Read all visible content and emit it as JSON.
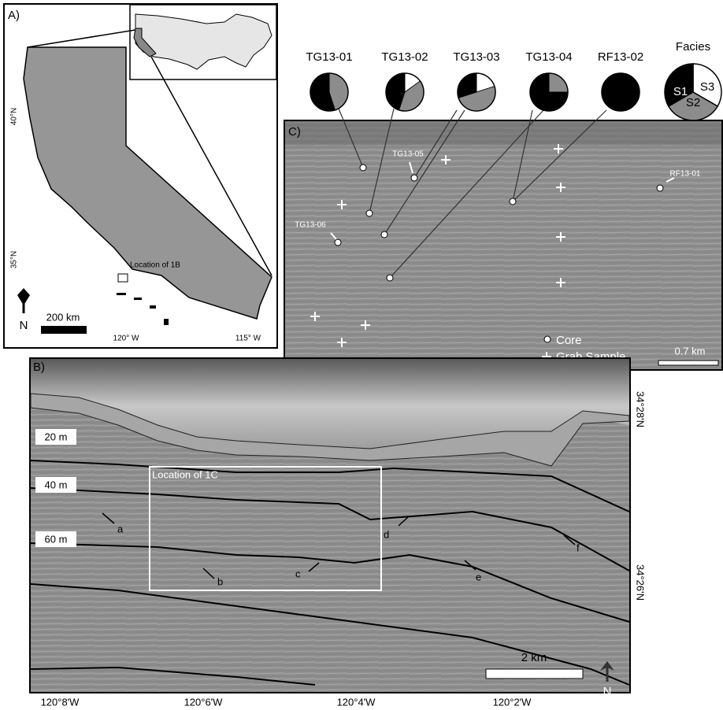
{
  "panel_a": {
    "label": "A)",
    "lat_labels": [
      "40°N",
      "35°N"
    ],
    "lon_labels": [
      "120° W",
      "115° W"
    ],
    "inset_label": "Location of 1B",
    "scale_label": "200 km",
    "north": "N"
  },
  "pies": {
    "type": "pie",
    "title": "Facies",
    "legend": [
      {
        "name": "S1",
        "color": "#000000"
      },
      {
        "name": "S2",
        "color": "#8c8c8c"
      },
      {
        "name": "S3",
        "color": "#ffffff"
      }
    ],
    "series": [
      {
        "name": "TG13-01",
        "values": [
          55,
          45,
          0
        ]
      },
      {
        "name": "TG13-02",
        "values": [
          45,
          40,
          15
        ]
      },
      {
        "name": "TG13-03",
        "values": [
          30,
          50,
          20
        ]
      },
      {
        "name": "TG13-04",
        "values": [
          75,
          25,
          0
        ]
      },
      {
        "name": "RF13-02",
        "values": [
          100,
          0,
          0
        ]
      }
    ]
  },
  "panel_c": {
    "label": "C)",
    "sample_labels": [
      "TG13-05",
      "TG13-06",
      "RF13-01"
    ],
    "legend": [
      "Core",
      "Grab Sample"
    ],
    "scale_label": "0.7 km"
  },
  "panel_b": {
    "label": "B)",
    "depth_labels": [
      "20 m",
      "40 m",
      "60 m"
    ],
    "box_label": "Location of 1C",
    "feature_labels": [
      "a",
      "b",
      "c",
      "d",
      "e",
      "f"
    ],
    "lat_labels": [
      "34°28'N",
      "34°26'N"
    ],
    "lon_labels": [
      "120°8'W",
      "120°6'W",
      "120°4'W",
      "120°2'W"
    ],
    "scale_label": "2 km",
    "north": "N"
  }
}
